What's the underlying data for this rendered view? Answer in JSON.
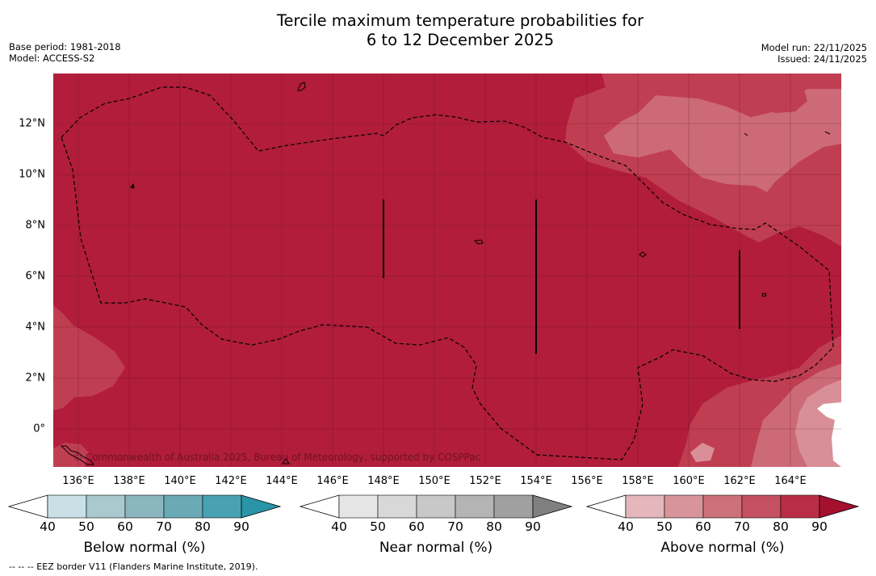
{
  "header": {
    "title_line1": "Tercile maximum temperature probabilities for",
    "title_line2": "6 to 12 December 2025",
    "base_period": "Base period: 1981-2018",
    "model": "Model: ACCESS-S2",
    "model_run": "Model run: 22/11/2025",
    "issued": "Issued: 24/11/2025"
  },
  "map": {
    "longitude_labels": [
      "136°E",
      "138°E",
      "140°E",
      "142°E",
      "144°E",
      "146°E",
      "148°E",
      "150°E",
      "152°E",
      "154°E",
      "156°E",
      "158°E",
      "160°E",
      "162°E",
      "164°E"
    ],
    "latitude_labels": [
      "12°N",
      "10°N",
      "8°N",
      "6°N",
      "4°N",
      "2°N",
      "0°"
    ],
    "copyright": "© Commonwealth of Australia 2025, Bureau of Meteorology, supported by COSPPac",
    "colors": {
      "base": "#b11d3b",
      "above_70_80": "#c03e52",
      "above_60_70": "#cc6a77",
      "above_50_60": "#d98f98",
      "white": "#ffffff"
    }
  },
  "colorbars": {
    "below": {
      "title": "Below normal (%)",
      "ticks": [
        "40",
        "50",
        "60",
        "70",
        "80",
        "90"
      ],
      "colors": [
        "#ffffff",
        "#c9e1e6",
        "#a9c9cf",
        "#8bb5bf",
        "#6aa9b6",
        "#48a2b2",
        "#2a94a8"
      ]
    },
    "near": {
      "title": "Near normal (%)",
      "ticks": [
        "40",
        "50",
        "60",
        "70",
        "80",
        "90"
      ],
      "colors": [
        "#ffffff",
        "#e6e6e6",
        "#d8d8d8",
        "#c8c8c8",
        "#b4b4b4",
        "#a0a0a0",
        "#808080"
      ]
    },
    "above": {
      "title": "Above normal (%)",
      "ticks": [
        "40",
        "50",
        "60",
        "70",
        "80",
        "90"
      ],
      "colors": [
        "#ffffff",
        "#e4b7bc",
        "#d7949a",
        "#cc7179",
        "#c45060",
        "#bb2d45",
        "#a5102e"
      ]
    }
  },
  "footnote": "--  --  -- EEZ border V11 (Flanders Marine Institute, 2019)."
}
